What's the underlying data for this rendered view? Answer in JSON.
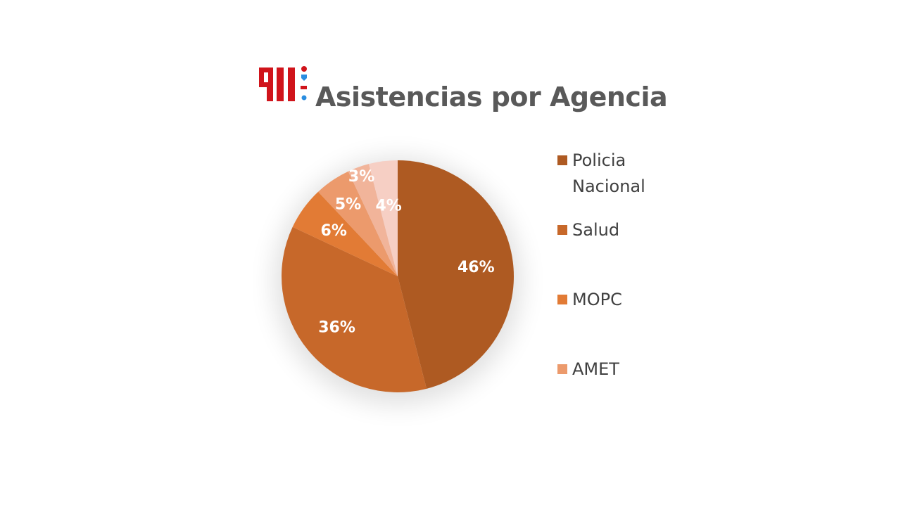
{
  "chart_data": {
    "type": "pie",
    "title": "Asistencias por Agencia",
    "logo_text": "911",
    "slices": [
      {
        "name": "Policia Nacional",
        "value": 46,
        "label": "46%",
        "color": "#ae5a22"
      },
      {
        "name": "Salud",
        "value": 36,
        "label": "36%",
        "color": "#c7682a"
      },
      {
        "name": "MOPC",
        "value": 6,
        "label": "6%",
        "color": "#e27b35"
      },
      {
        "name": "AMET",
        "value": 5,
        "label": "5%",
        "color": "#ec9a6c"
      },
      {
        "name": "",
        "value": 3,
        "label": "3%",
        "color": "#f1b49a"
      },
      {
        "name": "",
        "value": 4,
        "label": "4%",
        "color": "#f6cfc4"
      }
    ],
    "legend": {
      "placement": "right",
      "entries": [
        "Policia Nacional",
        "Salud",
        "MOPC",
        "AMET"
      ]
    }
  }
}
